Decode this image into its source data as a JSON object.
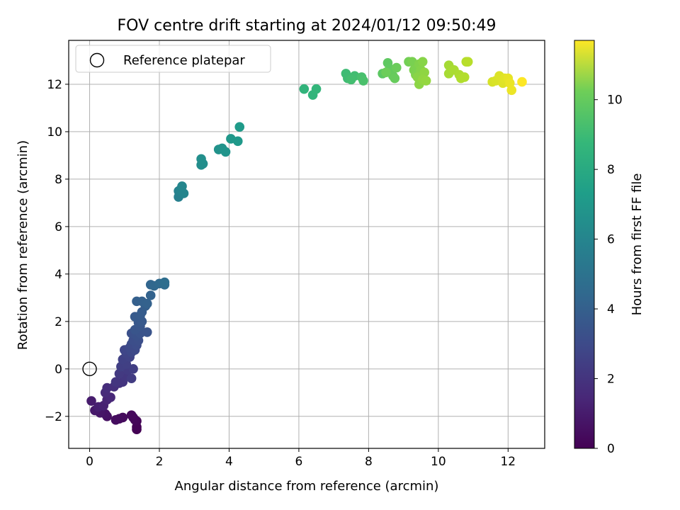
{
  "chart_data": {
    "type": "scatter",
    "title": "FOV centre drift starting at 2024/01/12 09:50:49",
    "xlabel": "Angular distance from reference (arcmin)",
    "ylabel": "Rotation from reference (arcmin)",
    "xlim": [
      -0.6,
      13.05
    ],
    "ylim": [
      -3.35,
      13.85
    ],
    "x_ticks": [
      0,
      2,
      4,
      6,
      8,
      10,
      12
    ],
    "y_ticks": [
      -2,
      0,
      2,
      4,
      6,
      8,
      10,
      12
    ],
    "grid": true,
    "legend": {
      "placement": "upper-left",
      "entries": [
        "Reference platepar"
      ]
    },
    "reference_point": {
      "x": 0,
      "y": 0
    },
    "colorbar": {
      "label": "Hours from first FF file",
      "colormap": "viridis",
      "range": [
        0,
        11.7
      ],
      "ticks": [
        0,
        2,
        4,
        6,
        8,
        10
      ]
    },
    "series": [
      {
        "color_by": "hours",
        "points": [
          [
            1.35,
            -2.55,
            0.0
          ],
          [
            1.35,
            -2.45,
            0.05
          ],
          [
            1.35,
            -2.2,
            0.1
          ],
          [
            1.3,
            -2.15,
            0.15
          ],
          [
            1.25,
            -2.05,
            0.2
          ],
          [
            1.2,
            -1.95,
            0.25
          ],
          [
            0.95,
            -2.05,
            0.3
          ],
          [
            0.85,
            -2.1,
            0.35
          ],
          [
            0.75,
            -2.15,
            0.4
          ],
          [
            0.5,
            -2.0,
            0.5
          ],
          [
            0.45,
            -1.9,
            0.6
          ],
          [
            0.3,
            -1.85,
            0.7
          ],
          [
            0.15,
            -1.75,
            0.8
          ],
          [
            0.05,
            -1.35,
            0.9
          ],
          [
            0.25,
            -1.6,
            1.0
          ],
          [
            0.4,
            -1.55,
            1.1
          ],
          [
            0.5,
            -1.3,
            1.2
          ],
          [
            0.6,
            -1.2,
            1.3
          ],
          [
            0.45,
            -1.0,
            1.4
          ],
          [
            0.5,
            -0.8,
            1.5
          ],
          [
            0.7,
            -0.75,
            1.6
          ],
          [
            0.85,
            -0.6,
            1.7
          ],
          [
            0.95,
            -0.55,
            1.8
          ],
          [
            0.75,
            -0.55,
            1.85
          ],
          [
            1.0,
            -0.3,
            1.9
          ],
          [
            0.85,
            -0.2,
            2.0
          ],
          [
            1.1,
            -0.05,
            2.05
          ],
          [
            1.2,
            -0.4,
            2.1
          ],
          [
            1.25,
            0.0,
            2.15
          ],
          [
            0.9,
            0.1,
            2.2
          ],
          [
            1.05,
            0.2,
            2.25
          ],
          [
            0.95,
            0.4,
            2.3
          ],
          [
            1.15,
            0.5,
            2.35
          ],
          [
            1.05,
            0.65,
            2.4
          ],
          [
            1.0,
            0.8,
            2.5
          ],
          [
            1.2,
            0.7,
            2.55
          ],
          [
            1.15,
            0.9,
            2.6
          ],
          [
            1.3,
            0.8,
            2.65
          ],
          [
            1.2,
            1.05,
            2.7
          ],
          [
            1.35,
            1.0,
            2.75
          ],
          [
            1.25,
            1.2,
            2.8
          ],
          [
            1.4,
            1.2,
            2.85
          ],
          [
            1.2,
            1.5,
            2.9
          ],
          [
            1.35,
            1.4,
            2.95
          ],
          [
            1.45,
            1.5,
            3.0
          ],
          [
            1.65,
            1.55,
            3.05
          ],
          [
            1.3,
            1.65,
            3.1
          ],
          [
            1.45,
            1.8,
            3.15
          ],
          [
            1.4,
            1.95,
            3.2
          ],
          [
            1.5,
            2.0,
            3.25
          ],
          [
            1.3,
            2.2,
            3.3
          ],
          [
            1.45,
            2.25,
            3.35
          ],
          [
            1.5,
            2.4,
            3.4
          ],
          [
            1.6,
            2.65,
            3.5
          ],
          [
            1.35,
            2.85,
            3.55
          ],
          [
            1.5,
            2.85,
            3.6
          ],
          [
            1.65,
            2.75,
            3.65
          ],
          [
            1.75,
            3.1,
            3.7
          ],
          [
            1.75,
            3.55,
            3.8
          ],
          [
            1.85,
            3.5,
            3.9
          ],
          [
            2.0,
            3.6,
            4.0
          ],
          [
            2.15,
            3.55,
            4.1
          ],
          [
            2.15,
            3.65,
            4.2
          ],
          [
            2.55,
            7.25,
            5.1
          ],
          [
            2.55,
            7.5,
            5.2
          ],
          [
            2.6,
            7.55,
            5.3
          ],
          [
            2.7,
            7.4,
            5.35
          ],
          [
            2.65,
            7.7,
            5.4
          ],
          [
            3.2,
            8.6,
            5.7
          ],
          [
            3.25,
            8.65,
            5.75
          ],
          [
            3.2,
            8.85,
            5.8
          ],
          [
            3.7,
            9.25,
            5.95
          ],
          [
            3.8,
            9.3,
            6.0
          ],
          [
            3.9,
            9.15,
            6.05
          ],
          [
            4.05,
            9.7,
            6.2
          ],
          [
            4.25,
            9.6,
            6.25
          ],
          [
            4.3,
            10.2,
            6.35
          ],
          [
            6.15,
            11.8,
            7.6
          ],
          [
            6.4,
            11.55,
            7.65
          ],
          [
            6.5,
            11.8,
            7.7
          ],
          [
            7.35,
            12.45,
            8.0
          ],
          [
            7.4,
            12.25,
            8.05
          ],
          [
            7.6,
            12.35,
            8.1
          ],
          [
            7.5,
            12.2,
            8.15
          ],
          [
            7.8,
            12.3,
            8.25
          ],
          [
            7.85,
            12.15,
            8.3
          ],
          [
            8.4,
            12.45,
            8.7
          ],
          [
            8.55,
            12.9,
            8.75
          ],
          [
            8.6,
            12.65,
            8.8
          ],
          [
            8.65,
            12.5,
            8.85
          ],
          [
            8.7,
            12.35,
            8.9
          ],
          [
            8.75,
            12.25,
            8.95
          ],
          [
            8.8,
            12.7,
            9.0
          ],
          [
            8.5,
            12.5,
            9.05
          ],
          [
            9.15,
            12.95,
            9.2
          ],
          [
            9.25,
            12.95,
            9.3
          ],
          [
            9.3,
            12.6,
            9.35
          ],
          [
            9.35,
            12.4,
            9.4
          ],
          [
            9.45,
            12.85,
            9.45
          ],
          [
            9.5,
            12.6,
            9.5
          ],
          [
            9.55,
            12.95,
            9.55
          ],
          [
            9.4,
            12.3,
            9.6
          ],
          [
            9.45,
            12.0,
            9.65
          ],
          [
            9.6,
            12.5,
            9.7
          ],
          [
            9.55,
            12.2,
            9.75
          ],
          [
            9.65,
            12.15,
            9.8
          ],
          [
            10.3,
            12.8,
            10.1
          ],
          [
            10.3,
            12.45,
            10.15
          ],
          [
            10.45,
            12.6,
            10.2
          ],
          [
            10.6,
            12.4,
            10.25
          ],
          [
            10.65,
            12.25,
            10.3
          ],
          [
            10.75,
            12.3,
            10.35
          ],
          [
            10.8,
            12.95,
            10.4
          ],
          [
            10.85,
            12.95,
            10.45
          ],
          [
            11.55,
            12.1,
            11.0
          ],
          [
            11.65,
            12.15,
            11.05
          ],
          [
            11.75,
            12.35,
            11.1
          ],
          [
            11.85,
            12.05,
            11.15
          ],
          [
            11.9,
            12.25,
            11.2
          ],
          [
            12.0,
            12.25,
            11.3
          ],
          [
            12.05,
            12.05,
            11.35
          ],
          [
            12.1,
            11.75,
            11.4
          ],
          [
            12.4,
            12.1,
            11.7
          ]
        ]
      }
    ]
  }
}
